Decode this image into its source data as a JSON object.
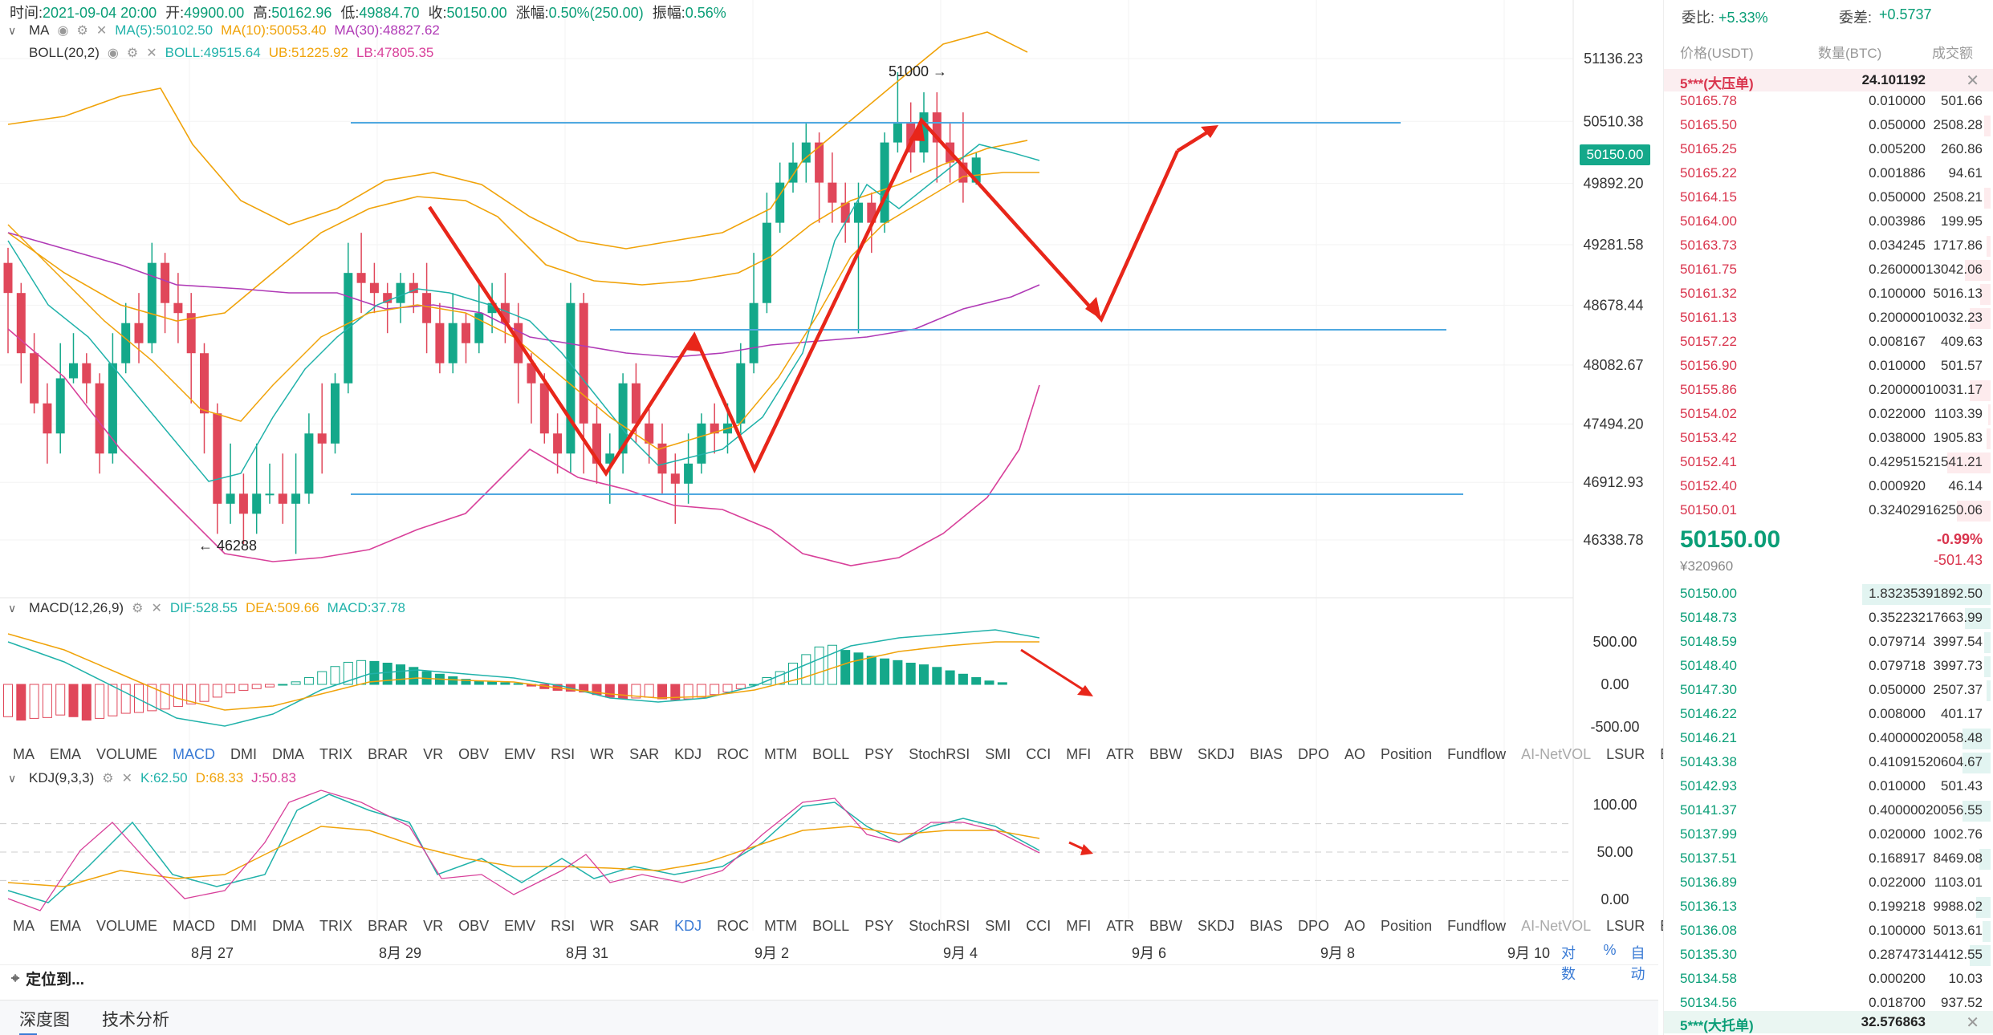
{
  "info": {
    "time_label": "时间:",
    "time": "2021-09-04 20:00",
    "open_label": "开:",
    "open": "49900.00",
    "high_label": "高:",
    "high": "50162.96",
    "low_label": "低:",
    "low": "49884.70",
    "close_label": "收:",
    "close": "50150.00",
    "change_label": "涨幅:",
    "change": "0.50%(250.00)",
    "amp_label": "振幅:",
    "amp": "0.56%"
  },
  "ma": {
    "name": "MA",
    "ma5": "MA(5):50102.50",
    "ma10": "MA(10):50053.40",
    "ma30": "MA(30):48827.62"
  },
  "boll": {
    "name": "BOLL(20,2)",
    "boll": "BOLL:49515.64",
    "ub": "UB:51225.92",
    "lb": "LB:47805.35"
  },
  "price_axis": [
    "51136.23",
    "50510.38",
    "49892.20",
    "49281.58",
    "48678.44",
    "48082.67",
    "47494.20",
    "46912.93",
    "46338.78"
  ],
  "current_price_tag": "50150.00",
  "annotations": {
    "high": "51000",
    "low": "46288"
  },
  "macd": {
    "name": "MACD(12,26,9)",
    "dif": "DIF:528.55",
    "dea": "DEA:509.66",
    "macd": "MACD:37.78",
    "axis": [
      "500.00",
      "0.00",
      "-500.00"
    ]
  },
  "kdj": {
    "name": "KDJ(9,3,3)",
    "k": "K:62.50",
    "d": "D:68.33",
    "j": "J:50.83",
    "axis": [
      "100.00",
      "50.00",
      "0.00"
    ]
  },
  "indicator_tabs": [
    "MA",
    "EMA",
    "VOLUME",
    "MACD",
    "DMI",
    "DMA",
    "TRIX",
    "BRAR",
    "VR",
    "OBV",
    "EMV",
    "RSI",
    "WR",
    "SAR",
    "KDJ",
    "ROC",
    "MTM",
    "BOLL",
    "PSY",
    "StochRSI",
    "SMI",
    "CCI",
    "MFI",
    "ATR",
    "BBW",
    "SKDJ",
    "BIAS",
    "DPO",
    "AO",
    "Position",
    "Fundflow",
    "AI-NetVOL",
    "LSUR",
    "BASIS"
  ],
  "dates": [
    "8月 27",
    "8月 29",
    "8月 31",
    "9月 2",
    "9月 4",
    "9月 6",
    "9月 8",
    "9月 10"
  ],
  "axis_controls": [
    "对数",
    "%",
    "自动"
  ],
  "locate": "定位到...",
  "bottom_tabs": [
    "深度图",
    "技术分析"
  ],
  "orderbook": {
    "weibi_label": "委比:",
    "weibi": "+5.33%",
    "weicha_label": "委差:",
    "weicha": "+0.5737",
    "col_price": "价格(USDT)",
    "col_qty": "数量(BTC)",
    "col_amount": "成交额",
    "top_big": {
      "label": "5***(大压单)",
      "qty": "24.101192"
    },
    "asks": [
      {
        "p": "50165.78",
        "q": "0.010000",
        "a": "501.66",
        "w": 0.0
      },
      {
        "p": "50165.50",
        "q": "0.050000",
        "a": "2508.28",
        "w": 0.05
      },
      {
        "p": "50165.25",
        "q": "0.005200",
        "a": "260.86",
        "w": 0.0
      },
      {
        "p": "50165.22",
        "q": "0.001886",
        "a": "94.61",
        "w": 0.0
      },
      {
        "p": "50164.15",
        "q": "0.050000",
        "a": "2508.21",
        "w": 0.05
      },
      {
        "p": "50164.00",
        "q": "0.003986",
        "a": "199.95",
        "w": 0.0
      },
      {
        "p": "50163.73",
        "q": "0.034245",
        "a": "1717.86",
        "w": 0.03
      },
      {
        "p": "50161.75",
        "q": "0.260000",
        "a": "13042.06",
        "w": 0.2
      },
      {
        "p": "50161.32",
        "q": "0.100000",
        "a": "5016.13",
        "w": 0.08
      },
      {
        "p": "50161.13",
        "q": "0.200000",
        "a": "10032.23",
        "w": 0.16
      },
      {
        "p": "50157.22",
        "q": "0.008167",
        "a": "409.63",
        "w": 0.0
      },
      {
        "p": "50156.90",
        "q": "0.010000",
        "a": "501.57",
        "w": 0.0
      },
      {
        "p": "50155.86",
        "q": "0.200000",
        "a": "10031.17",
        "w": 0.16
      },
      {
        "p": "50154.02",
        "q": "0.022000",
        "a": "1103.39",
        "w": 0.02
      },
      {
        "p": "50153.42",
        "q": "0.038000",
        "a": "1905.83",
        "w": 0.03
      },
      {
        "p": "50152.41",
        "q": "0.429515",
        "a": "21541.21",
        "w": 0.34
      },
      {
        "p": "50152.40",
        "q": "0.000920",
        "a": "46.14",
        "w": 0.0
      },
      {
        "p": "50150.01",
        "q": "0.324029",
        "a": "16250.06",
        "w": 0.26
      }
    ],
    "mid": {
      "price": "50150.00",
      "cny": "¥320960",
      "pct": "-0.99%",
      "chg": "-501.43"
    },
    "bids": [
      {
        "p": "50150.00",
        "q": "1.832353",
        "a": "91892.50",
        "w": 1.0
      },
      {
        "p": "50148.73",
        "q": "0.352232",
        "a": "17663.99",
        "w": 0.2
      },
      {
        "p": "50148.59",
        "q": "0.079714",
        "a": "3997.54",
        "w": 0.05
      },
      {
        "p": "50148.40",
        "q": "0.079718",
        "a": "3997.73",
        "w": 0.05
      },
      {
        "p": "50147.30",
        "q": "0.050000",
        "a": "2507.37",
        "w": 0.03
      },
      {
        "p": "50146.22",
        "q": "0.008000",
        "a": "401.17",
        "w": 0.0
      },
      {
        "p": "50146.21",
        "q": "0.400000",
        "a": "20058.48",
        "w": 0.22
      },
      {
        "p": "50143.38",
        "q": "0.410915",
        "a": "20604.67",
        "w": 0.22
      },
      {
        "p": "50142.93",
        "q": "0.010000",
        "a": "501.43",
        "w": 0.0
      },
      {
        "p": "50141.37",
        "q": "0.400000",
        "a": "20056.55",
        "w": 0.22
      },
      {
        "p": "50137.99",
        "q": "0.020000",
        "a": "1002.76",
        "w": 0.0
      },
      {
        "p": "50137.51",
        "q": "0.168917",
        "a": "8469.08",
        "w": 0.09
      },
      {
        "p": "50136.89",
        "q": "0.022000",
        "a": "1103.01",
        "w": 0.0
      },
      {
        "p": "50136.13",
        "q": "0.199218",
        "a": "9988.02",
        "w": 0.11
      },
      {
        "p": "50136.08",
        "q": "0.100000",
        "a": "5013.61",
        "w": 0.06
      },
      {
        "p": "50135.30",
        "q": "0.287473",
        "a": "14412.55",
        "w": 0.16
      },
      {
        "p": "50134.58",
        "q": "0.000200",
        "a": "10.03",
        "w": 0.0
      },
      {
        "p": "50134.56",
        "q": "0.018700",
        "a": "937.52",
        "w": 0.0
      }
    ],
    "bottom_big": {
      "label": "5***(大托单)",
      "qty": "32.576863"
    }
  },
  "colors": {
    "up": "#14a88a",
    "down": "#e0475a",
    "ma5": "#20b2aa",
    "ma10": "#f0a30a",
    "ma30": "#b03ab6",
    "boll_band": "#f0a30a",
    "boll_lb": "#d8409a",
    "support": "#4fa8e0",
    "arrows": "#e8261a"
  }
}
